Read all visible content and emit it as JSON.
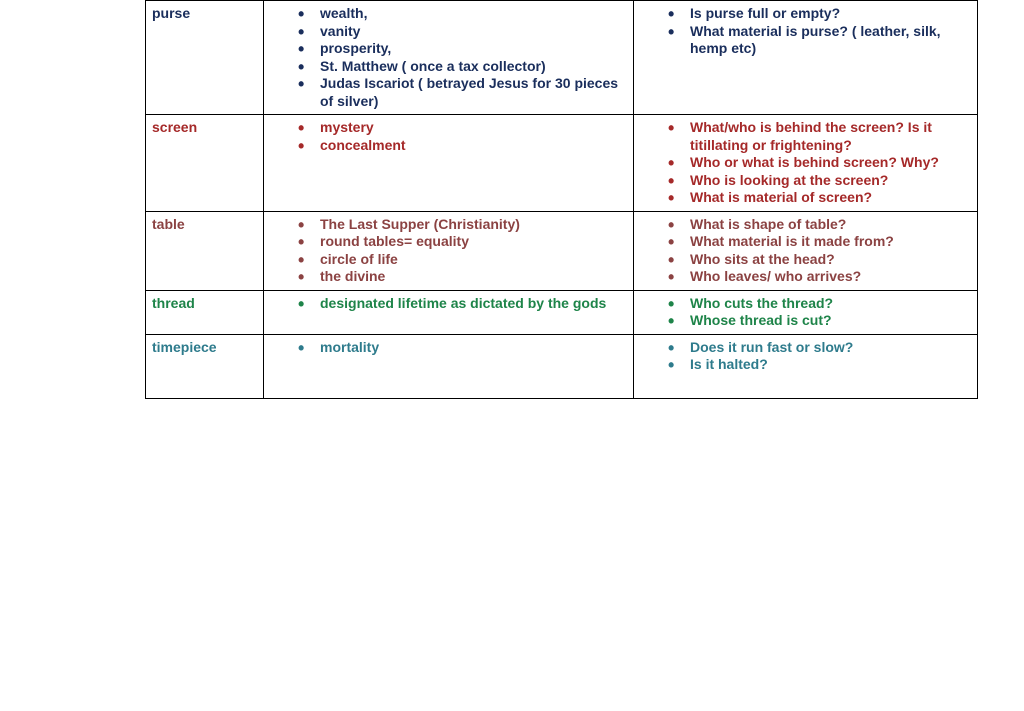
{
  "table": {
    "rows": [
      {
        "term": "purse",
        "rowClass": "row-purse",
        "meanings": [
          "wealth,",
          "vanity",
          "prosperity,",
          "St. Matthew ( once a tax collector)",
          "Judas Iscariot ( betrayed Jesus for 30 pieces of silver)"
        ],
        "questions": [
          "Is purse full or empty?",
          "What material is purse? ( leather, silk, hemp etc)"
        ]
      },
      {
        "term": "screen",
        "rowClass": "row-screen",
        "meanings": [
          "mystery",
          "concealment"
        ],
        "questions": [
          "What/who is behind the screen? Is it titillating or frightening?",
          "Who or what is behind screen? Why?",
          "Who is looking at the screen?",
          "What is material of screen?"
        ]
      },
      {
        "term": "table",
        "rowClass": "row-table",
        "meanings": [
          "The Last Supper (Christianity)",
          "round tables= equality",
          "circle of life",
          "the divine"
        ],
        "questions": [
          "What is shape of table?",
          "What material is it made from?",
          "Who sits at the head?",
          "Who leaves/ who arrives?"
        ]
      },
      {
        "term": "thread",
        "rowClass": "row-thread",
        "meanings": [
          "designated lifetime as dictated by the gods"
        ],
        "questions": [
          "Who cuts the thread?",
          "Whose thread is cut?"
        ]
      },
      {
        "term": "timepiece",
        "rowClass": "row-timepiece",
        "meanings": [
          "mortality"
        ],
        "questions": [
          "Does it run fast or slow?",
          "Is it halted?"
        ]
      }
    ],
    "colors": {
      "purse": "#1a2e5c",
      "screen": "#a52929",
      "table": "#8b4242",
      "thread": "#1e8449",
      "timepiece": "#2e7b8c",
      "border": "#000000",
      "background": "#ffffff"
    },
    "columnWidths": {
      "term": 118,
      "meaning": 370,
      "questions": 344
    },
    "fontSize": 14,
    "fontFamily": "Arial"
  }
}
